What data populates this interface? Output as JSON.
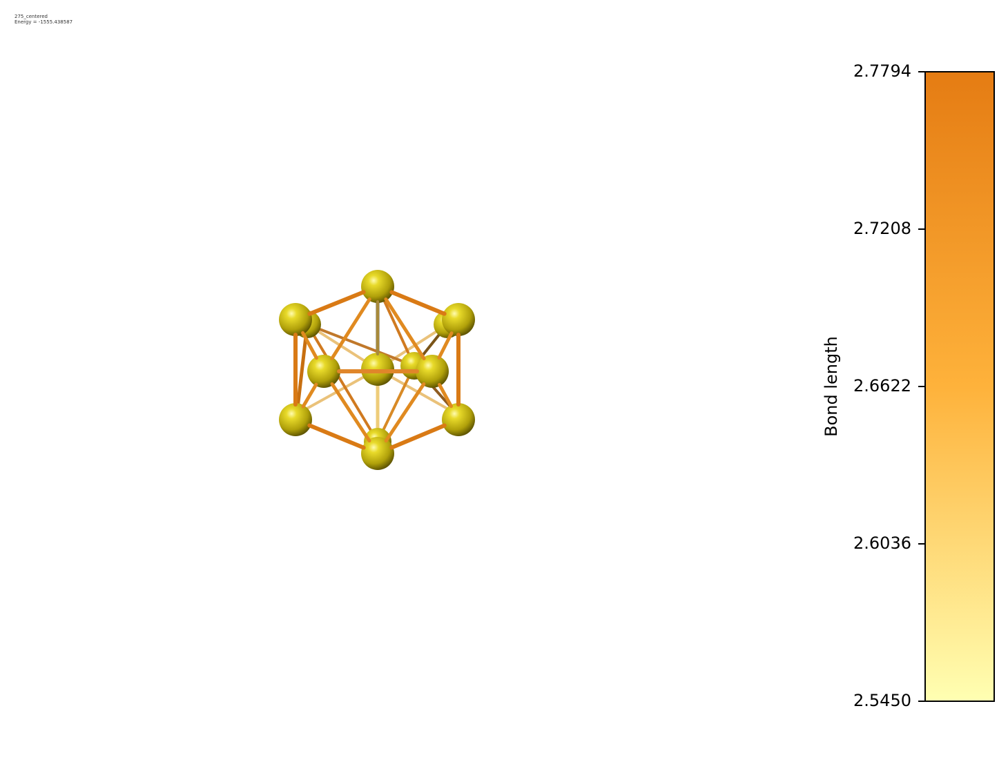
{
  "caption": {
    "name": "275_centered",
    "energy": "Energy = -1555.438587"
  },
  "colorbar": {
    "label": "Bond length",
    "ticks": [
      "2.7794",
      "2.7208",
      "2.6622",
      "2.6036",
      "2.5450"
    ],
    "min": 2.545,
    "max": 2.7794,
    "color_low": "#ffffb2",
    "color_mid": "#feb23b",
    "color_high": "#e57c13"
  },
  "molecule": {
    "atom_color": "#d4c310",
    "atom_count": 13
  }
}
